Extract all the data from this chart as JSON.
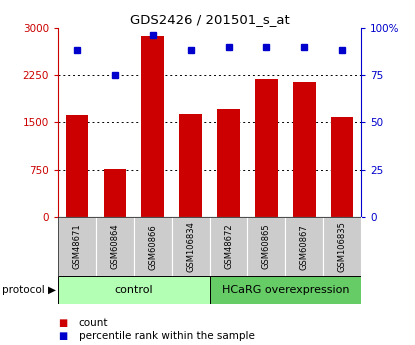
{
  "title": "GDS2426 / 201501_s_at",
  "samples": [
    "GSM48671",
    "GSM60864",
    "GSM60866",
    "GSM106834",
    "GSM48672",
    "GSM60865",
    "GSM60867",
    "GSM106835"
  ],
  "counts": [
    1620,
    760,
    2870,
    1640,
    1720,
    2180,
    2140,
    1580
  ],
  "percentiles": [
    88,
    75,
    96,
    88,
    90,
    90,
    90,
    88
  ],
  "bar_color": "#cc0000",
  "dot_color": "#0000cc",
  "left_ylim": [
    0,
    3000
  ],
  "right_ylim": [
    0,
    100
  ],
  "left_yticks": [
    0,
    750,
    1500,
    2250,
    3000
  ],
  "right_yticks": [
    0,
    25,
    50,
    75,
    100
  ],
  "left_yticklabels": [
    "0",
    "750",
    "1500",
    "2250",
    "3000"
  ],
  "right_yticklabels": [
    "0",
    "25",
    "50",
    "75",
    "100%"
  ],
  "grid_values": [
    750,
    1500,
    2250
  ],
  "control_label": "control",
  "overexp_label": "HCaRG overexpression",
  "protocol_label": "protocol",
  "legend_count": "count",
  "legend_pct": "percentile rank within the sample",
  "control_color": "#b3ffb3",
  "overexp_color": "#66cc66",
  "tick_area_color": "#cccccc",
  "n_control": 4,
  "n_overexp": 4
}
